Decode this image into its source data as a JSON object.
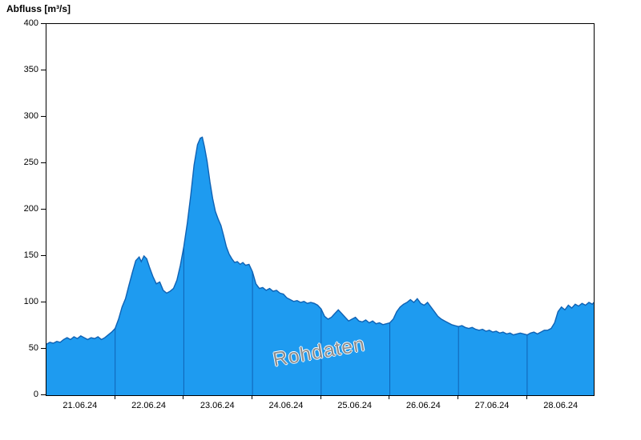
{
  "title": "Abfluss [m³/s]",
  "watermark": "Rohdaten",
  "chart_data": {
    "type": "area",
    "title": "Abfluss [m³/s]",
    "ylabel": "Abfluss [m³/s]",
    "xlabel": "",
    "ylim": [
      0,
      400
    ],
    "y_ticks": [
      0,
      50,
      100,
      150,
      200,
      250,
      300,
      350,
      400
    ],
    "x_domain": [
      0,
      7.97
    ],
    "x_labels": [
      "21.06.24",
      "22.06.24",
      "23.06.24",
      "24.06.24",
      "25.06.24",
      "26.06.24",
      "27.06.24",
      "28.06.24"
    ],
    "day_boundaries": [
      1,
      2,
      3,
      4,
      5,
      6,
      7
    ],
    "grid": "vertical-day-lines-only",
    "legend": "none",
    "annotation": "Rohdaten",
    "colors": {
      "fill": "#1E9BF0",
      "line": "#0F62B4",
      "boundary": "#0F62B4",
      "axis": "#000000"
    },
    "series": [
      {
        "name": "Abfluss Rohdaten",
        "x": [
          0.0,
          0.05,
          0.1,
          0.15,
          0.2,
          0.25,
          0.3,
          0.35,
          0.4,
          0.45,
          0.5,
          0.55,
          0.6,
          0.65,
          0.7,
          0.75,
          0.8,
          0.85,
          0.9,
          0.95,
          1.0,
          1.05,
          1.1,
          1.15,
          1.2,
          1.25,
          1.3,
          1.35,
          1.38,
          1.42,
          1.46,
          1.5,
          1.55,
          1.6,
          1.65,
          1.7,
          1.75,
          1.8,
          1.85,
          1.9,
          1.95,
          2.0,
          2.05,
          2.1,
          2.15,
          2.2,
          2.24,
          2.27,
          2.3,
          2.34,
          2.38,
          2.42,
          2.46,
          2.5,
          2.54,
          2.58,
          2.62,
          2.66,
          2.7,
          2.74,
          2.78,
          2.82,
          2.86,
          2.9,
          2.95,
          3.0,
          3.05,
          3.1,
          3.15,
          3.2,
          3.25,
          3.3,
          3.35,
          3.4,
          3.45,
          3.5,
          3.55,
          3.6,
          3.65,
          3.7,
          3.75,
          3.8,
          3.85,
          3.9,
          3.95,
          4.0,
          4.05,
          4.1,
          4.15,
          4.2,
          4.25,
          4.3,
          4.35,
          4.4,
          4.45,
          4.5,
          4.55,
          4.6,
          4.65,
          4.7,
          4.75,
          4.8,
          4.85,
          4.9,
          4.95,
          5.0,
          5.05,
          5.1,
          5.15,
          5.2,
          5.25,
          5.3,
          5.35,
          5.4,
          5.45,
          5.5,
          5.55,
          5.6,
          5.65,
          5.7,
          5.75,
          5.8,
          5.85,
          5.9,
          5.95,
          6.0,
          6.05,
          6.1,
          6.15,
          6.2,
          6.25,
          6.3,
          6.35,
          6.4,
          6.45,
          6.5,
          6.55,
          6.6,
          6.65,
          6.7,
          6.75,
          6.8,
          6.85,
          6.9,
          6.95,
          7.0,
          7.05,
          7.1,
          7.15,
          7.2,
          7.25,
          7.3,
          7.35,
          7.4,
          7.45,
          7.5,
          7.55,
          7.6,
          7.65,
          7.7,
          7.75,
          7.8,
          7.85,
          7.9,
          7.95,
          7.97
        ],
        "y": [
          55,
          57,
          56,
          58,
          57,
          60,
          62,
          60,
          63,
          61,
          64,
          62,
          60,
          62,
          61,
          63,
          60,
          62,
          65,
          68,
          72,
          82,
          95,
          104,
          118,
          132,
          145,
          149,
          144,
          150,
          147,
          138,
          128,
          120,
          122,
          113,
          110,
          112,
          115,
          124,
          140,
          160,
          185,
          215,
          248,
          270,
          277,
          278,
          268,
          252,
          230,
          212,
          198,
          190,
          183,
          172,
          160,
          152,
          147,
          143,
          144,
          141,
          143,
          140,
          141,
          133,
          120,
          115,
          116,
          113,
          115,
          112,
          113,
          110,
          109,
          105,
          103,
          101,
          102,
          100,
          101,
          99,
          100,
          99,
          97,
          93,
          85,
          82,
          84,
          88,
          92,
          88,
          84,
          80,
          82,
          84,
          80,
          79,
          81,
          78,
          80,
          77,
          78,
          76,
          77,
          78,
          82,
          90,
          95,
          98,
          100,
          103,
          100,
          104,
          99,
          97,
          100,
          95,
          90,
          85,
          82,
          80,
          78,
          76,
          75,
          74,
          75,
          73,
          72,
          73,
          71,
          70,
          71,
          69,
          70,
          68,
          69,
          67,
          68,
          66,
          67,
          65,
          66,
          67,
          66,
          65,
          67,
          68,
          66,
          68,
          70,
          70,
          72,
          78,
          90,
          95,
          92,
          97,
          94,
          98,
          96,
          99,
          97,
          100,
          98,
          100
        ]
      }
    ]
  }
}
